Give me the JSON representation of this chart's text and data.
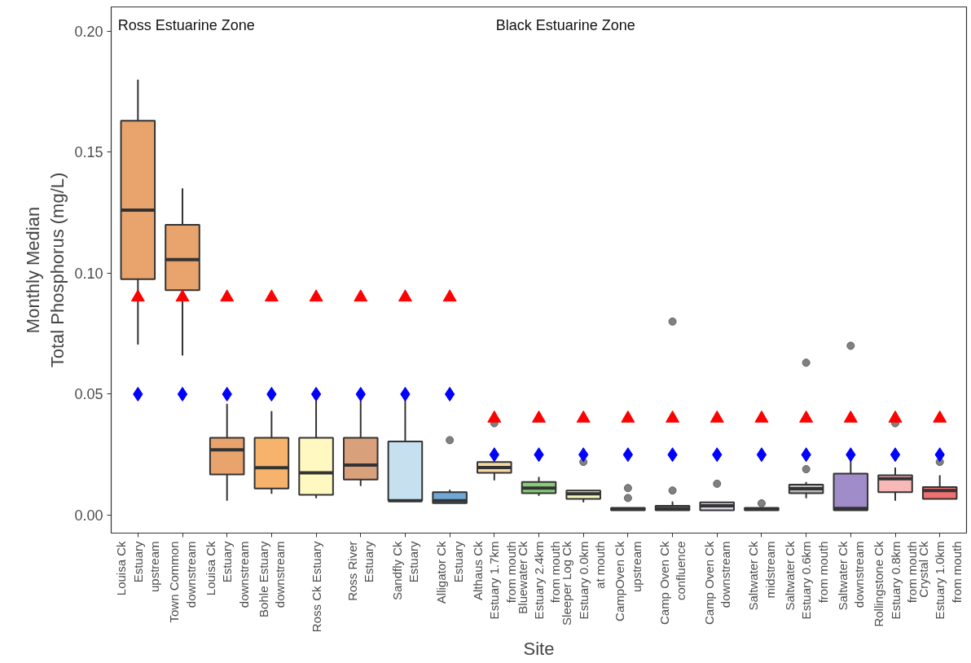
{
  "chart_data": {
    "type": "box",
    "xlabel": "Site",
    "ylabel": "Monthly Median\nTotal Phosphorus (mg/L)",
    "annotations": [
      "Ross Estuarine Zone",
      "Black Estuarine Zone"
    ],
    "categories": [
      "Louisa Ck\nEstuary\nupstream",
      "Town Common\ndownstream",
      "Louisa Ck\nEstuary\ndownstream",
      "Bohle Estuary\ndownstream",
      "Ross Ck Estuary",
      "Ross River\nEstuary",
      "Sandfly Ck\nEstuary",
      "Alligator Ck\nEstuary",
      "Althaus Ck\nEstuary 1.7km\nfrom mouth",
      "Bluewater Ck\nEstuary 2.4km\nfrom mouth",
      "Sleeper Log Ck\nEstuary 0.0km\nat mouth",
      "CampOven Ck\nupstream",
      "Camp Oven Ck\nconfluence",
      "Camp Oven Ck\ndownstream",
      "Saltwater Ck\nmidstream",
      "Saltwater Ck\nEstuary 0.6km\nfrom mouth",
      "Saltwater Ck\ndownstream",
      "Rollingstone Ck\nEstuary 0.8km\nfrom mouth",
      "Crystal Ck\nEstuary 1.0km\nfrom mouth"
    ],
    "colors": [
      "#e8a46c",
      "#e8a46c",
      "#e8a46c",
      "#f7b36b",
      "#fff8c0",
      "#d9a07c",
      "#c6e0f0",
      "#6fa8d6",
      "#f6d8a0",
      "#88cc77",
      "#f7f7c0",
      "#cccccc",
      "#e0e0e0",
      "#d8d0e8",
      "#cccccc",
      "#bbbbbb",
      "#a08cc8",
      "#f8b8b8",
      "#f07070"
    ],
    "boxes": [
      {
        "low": 0.0705,
        "q1": 0.0975,
        "median": 0.126,
        "q3": 0.163,
        "high": 0.18
      },
      {
        "low": 0.066,
        "q1": 0.093,
        "median": 0.1056,
        "q3": 0.12,
        "high": 0.135
      },
      {
        "low": 0.006,
        "q1": 0.0168,
        "median": 0.027,
        "q3": 0.032,
        "high": 0.046
      },
      {
        "low": 0.0088,
        "q1": 0.011,
        "median": 0.0196,
        "q3": 0.032,
        "high": 0.043
      },
      {
        "low": 0.007,
        "q1": 0.0084,
        "median": 0.0175,
        "q3": 0.032,
        "high": 0.048
      },
      {
        "low": 0.012,
        "q1": 0.0147,
        "median": 0.0207,
        "q3": 0.032,
        "high": 0.048
      },
      {
        "low": 0.006,
        "q1": 0.006,
        "median": 0.006,
        "q3": 0.0305,
        "high": 0.048
      },
      {
        "low": 0.005,
        "q1": 0.005,
        "median": 0.006,
        "q3": 0.0095,
        "high": 0.0105,
        "outliers": [
          0.031
        ]
      },
      {
        "low": 0.0144,
        "q1": 0.0175,
        "median": 0.0197,
        "q3": 0.022,
        "high": 0.022,
        "outliers": [
          0.038
        ]
      },
      {
        "low": 0.008,
        "q1": 0.0091,
        "median": 0.0112,
        "q3": 0.0137,
        "high": 0.0158
      },
      {
        "low": 0.0053,
        "q1": 0.0067,
        "median": 0.0088,
        "q3": 0.0102,
        "high": 0.0102,
        "outliers": [
          0.022
        ]
      },
      {
        "low": 0.002,
        "q1": 0.002,
        "median": 0.0025,
        "q3": 0.003,
        "high": 0.003,
        "outliers": [
          0.0112,
          0.0071
        ]
      },
      {
        "low": 0.002,
        "q1": 0.002,
        "median": 0.0028,
        "q3": 0.0039,
        "high": 0.0056,
        "outliers": [
          0.08,
          0.0102
        ]
      },
      {
        "low": 0.002,
        "q1": 0.002,
        "median": 0.0039,
        "q3": 0.0053,
        "high": 0.0053,
        "outliers": [
          0.013
        ]
      },
      {
        "low": 0.002,
        "q1": 0.002,
        "median": 0.0025,
        "q3": 0.003,
        "high": 0.003,
        "outliers": [
          0.0049
        ]
      },
      {
        "low": 0.007,
        "q1": 0.0091,
        "median": 0.0109,
        "q3": 0.0126,
        "high": 0.0137,
        "outliers": [
          0.063,
          0.019
        ]
      },
      {
        "low": 0.002,
        "q1": 0.002,
        "median": 0.0028,
        "q3": 0.0172,
        "high": 0.025,
        "outliers": [
          0.07
        ]
      },
      {
        "low": 0.006,
        "q1": 0.0095,
        "median": 0.0151,
        "q3": 0.0165,
        "high": 0.0197,
        "outliers": [
          0.038
        ]
      },
      {
        "low": 0.0067,
        "q1": 0.0067,
        "median": 0.0102,
        "q3": 0.0116,
        "high": 0.0165,
        "outliers": [
          0.022
        ]
      }
    ],
    "series": [
      {
        "type": "scatter",
        "marker": "triangle",
        "color": "#ff0000",
        "values": [
          0.09,
          0.09,
          0.09,
          0.09,
          0.09,
          0.09,
          0.09,
          0.09,
          0.04,
          0.04,
          0.04,
          0.04,
          0.04,
          0.04,
          0.04,
          0.04,
          0.04,
          0.04,
          0.04
        ]
      },
      {
        "type": "scatter",
        "marker": "diamond",
        "color": "#0000ff",
        "values": [
          0.05,
          0.05,
          0.05,
          0.05,
          0.05,
          0.05,
          0.05,
          0.05,
          0.025,
          0.025,
          0.025,
          0.025,
          0.025,
          0.025,
          0.025,
          0.025,
          0.025,
          0.025,
          0.025
        ]
      }
    ],
    "ylim": [
      -0.0074,
      0.21
    ],
    "yticks": [
      {
        "value": 0,
        "label": "0.00"
      },
      {
        "value": 0.05,
        "label": "0.05"
      },
      {
        "value": 0.1,
        "label": "0.10"
      },
      {
        "value": 0.15,
        "label": "0.15"
      },
      {
        "value": 0.2,
        "label": "0.20"
      }
    ],
    "grid": false
  }
}
